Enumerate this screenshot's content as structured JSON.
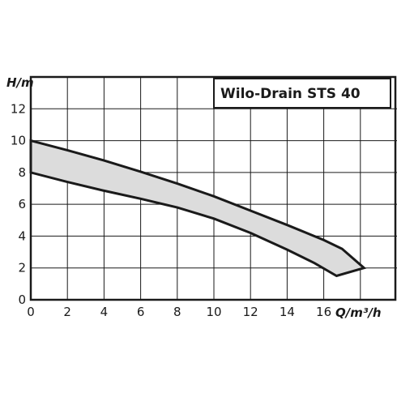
{
  "chart_data": {
    "type": "area",
    "title": "Wilo-Drain STS 40",
    "xlabel": {
      "symbol": "Q",
      "unit": "/m³/h"
    },
    "ylabel": {
      "symbol": "H",
      "unit": "/m"
    },
    "xlim": [
      0,
      20
    ],
    "ylim": [
      0,
      14
    ],
    "xticks": [
      "0",
      "2",
      "4",
      "6",
      "8",
      "10",
      "12",
      "14",
      "16"
    ],
    "yticks": [
      "0",
      "2",
      "4",
      "6",
      "8",
      "10",
      "12"
    ],
    "grid": true,
    "colors": {
      "band_fill": "#dcdcdc",
      "curve": "#1a1a1a",
      "grid": "#1a1a1a"
    },
    "series": [
      {
        "role": "upper-curve",
        "points": [
          [
            0,
            10
          ],
          [
            2,
            9.4
          ],
          [
            4,
            8.75
          ],
          [
            6,
            8.05
          ],
          [
            8,
            7.3
          ],
          [
            10,
            6.5
          ],
          [
            12,
            5.6
          ],
          [
            14,
            4.7
          ],
          [
            16,
            3.75
          ],
          [
            17,
            3.2
          ],
          [
            18.2,
            2.0
          ]
        ]
      },
      {
        "role": "lower-curve",
        "points": [
          [
            0,
            8
          ],
          [
            2,
            7.4
          ],
          [
            4,
            6.85
          ],
          [
            6,
            6.35
          ],
          [
            8,
            5.8
          ],
          [
            10,
            5.1
          ],
          [
            12,
            4.2
          ],
          [
            14,
            3.15
          ],
          [
            15.5,
            2.3
          ],
          [
            16.7,
            1.5
          ],
          [
            18.2,
            2.0
          ]
        ]
      }
    ]
  }
}
